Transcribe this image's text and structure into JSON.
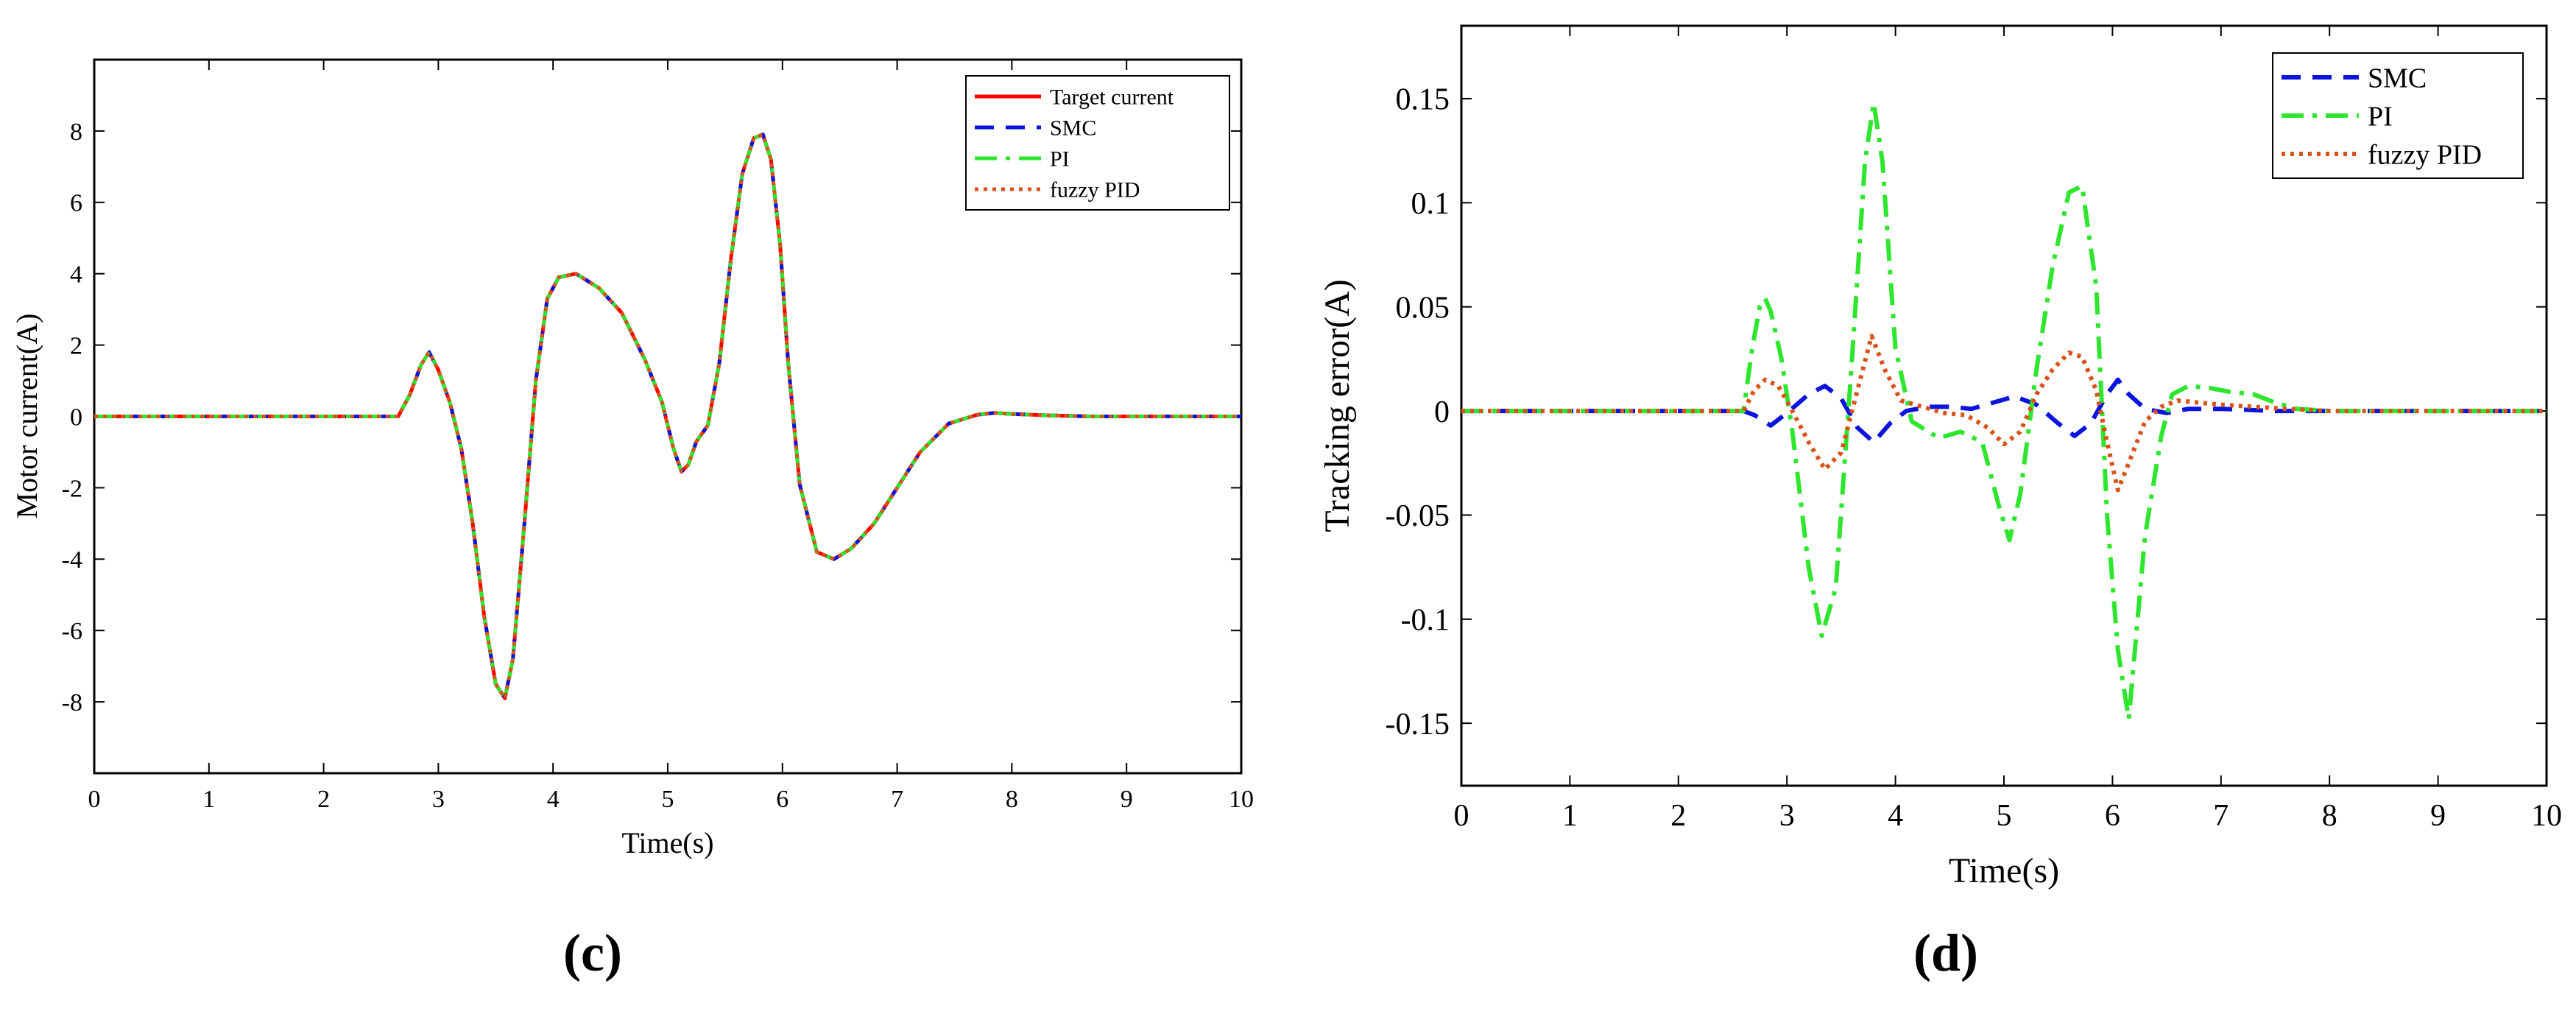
{
  "chart_data": [
    {
      "type": "line",
      "panel_label": "(c)",
      "xlabel": "Time(s)",
      "ylabel": "Motor current(A)",
      "xlim": [
        0,
        10
      ],
      "ylim": [
        -10,
        10
      ],
      "xticks": [
        0,
        1,
        2,
        3,
        4,
        5,
        6,
        7,
        8,
        9,
        10
      ],
      "xtick_labels": [
        "0",
        "1",
        "2",
        "3",
        "4",
        "5",
        "6",
        "7",
        "8",
        "9",
        "10"
      ],
      "yticks": [
        -8,
        -6,
        -4,
        -2,
        0,
        2,
        4,
        6,
        8
      ],
      "ytick_labels": [
        "-8",
        "-6",
        "-4",
        "-2",
        "0",
        "2",
        "4",
        "6",
        "8"
      ],
      "grid": false,
      "legend_position": "top-right",
      "series": [
        {
          "name": "Target current",
          "color": "#ff0000",
          "dash": "solid",
          "x": [
            0,
            2.65,
            2.75,
            2.85,
            2.92,
            3.0,
            3.1,
            3.2,
            3.3,
            3.4,
            3.5,
            3.58,
            3.65,
            3.75,
            3.85,
            3.95,
            4.05,
            4.2,
            4.4,
            4.6,
            4.8,
            4.95,
            5.05,
            5.12,
            5.18,
            5.25,
            5.35,
            5.45,
            5.55,
            5.65,
            5.75,
            5.83,
            5.9,
            5.98,
            6.05,
            6.15,
            6.3,
            6.45,
            6.6,
            6.8,
            7.0,
            7.2,
            7.45,
            7.7,
            7.85,
            8.0,
            8.3,
            8.7,
            9.2,
            10
          ],
          "y": [
            0,
            0,
            0.6,
            1.45,
            1.8,
            1.3,
            0.4,
            -0.9,
            -3.0,
            -5.6,
            -7.5,
            -7.9,
            -6.8,
            -3.0,
            1.0,
            3.3,
            3.9,
            4.0,
            3.6,
            2.9,
            1.6,
            0.4,
            -0.9,
            -1.55,
            -1.35,
            -0.7,
            -0.25,
            1.5,
            4.4,
            6.8,
            7.8,
            7.9,
            7.2,
            4.8,
            1.5,
            -1.9,
            -3.8,
            -4.0,
            -3.7,
            -3.0,
            -2.0,
            -1.0,
            -0.2,
            0.05,
            0.1,
            0.07,
            0.03,
            0,
            0,
            0
          ]
        },
        {
          "name": "SMC",
          "color": "#0a14dc",
          "dash": "dashed",
          "x": [
            0,
            2.65,
            2.75,
            2.85,
            2.92,
            3.0,
            3.1,
            3.2,
            3.3,
            3.4,
            3.5,
            3.58,
            3.65,
            3.75,
            3.85,
            3.95,
            4.05,
            4.2,
            4.4,
            4.6,
            4.8,
            4.95,
            5.05,
            5.12,
            5.18,
            5.25,
            5.35,
            5.45,
            5.55,
            5.65,
            5.75,
            5.83,
            5.9,
            5.98,
            6.05,
            6.15,
            6.3,
            6.45,
            6.6,
            6.8,
            7.0,
            7.2,
            7.45,
            7.7,
            7.85,
            8.0,
            8.3,
            8.7,
            9.2,
            10
          ],
          "y": [
            0,
            0,
            0.6,
            1.45,
            1.8,
            1.3,
            0.4,
            -0.9,
            -3.0,
            -5.6,
            -7.5,
            -7.9,
            -6.8,
            -3.0,
            1.0,
            3.3,
            3.9,
            4.0,
            3.6,
            2.9,
            1.6,
            0.4,
            -0.9,
            -1.55,
            -1.35,
            -0.7,
            -0.25,
            1.5,
            4.4,
            6.8,
            7.8,
            7.9,
            7.2,
            4.8,
            1.5,
            -1.9,
            -3.8,
            -4.0,
            -3.7,
            -3.0,
            -2.0,
            -1.0,
            -0.2,
            0.05,
            0.1,
            0.07,
            0.03,
            0,
            0,
            0
          ]
        },
        {
          "name": "PI",
          "color": "#2ee62e",
          "dash": "dashdot",
          "x": [
            0,
            2.65,
            2.75,
            2.85,
            2.92,
            3.0,
            3.1,
            3.2,
            3.3,
            3.4,
            3.5,
            3.58,
            3.65,
            3.75,
            3.85,
            3.95,
            4.05,
            4.2,
            4.4,
            4.6,
            4.8,
            4.95,
            5.05,
            5.12,
            5.18,
            5.25,
            5.35,
            5.45,
            5.55,
            5.65,
            5.75,
            5.83,
            5.9,
            5.98,
            6.05,
            6.15,
            6.3,
            6.45,
            6.6,
            6.8,
            7.0,
            7.2,
            7.45,
            7.7,
            7.85,
            8.0,
            8.3,
            8.7,
            9.2,
            10
          ],
          "y": [
            0,
            0,
            0.6,
            1.45,
            1.8,
            1.3,
            0.4,
            -0.9,
            -3.0,
            -5.6,
            -7.5,
            -7.9,
            -6.8,
            -3.0,
            1.0,
            3.3,
            3.9,
            4.0,
            3.6,
            2.9,
            1.6,
            0.4,
            -0.9,
            -1.55,
            -1.35,
            -0.7,
            -0.25,
            1.5,
            4.4,
            6.8,
            7.8,
            7.9,
            7.2,
            4.8,
            1.5,
            -1.9,
            -3.8,
            -4.0,
            -3.7,
            -3.0,
            -2.0,
            -1.0,
            -0.2,
            0.05,
            0.1,
            0.07,
            0.03,
            0,
            0,
            0
          ]
        },
        {
          "name": "fuzzy PID",
          "color": "#d95319",
          "dash": "dotted",
          "x": [
            0,
            2.65,
            2.75,
            2.85,
            2.92,
            3.0,
            3.1,
            3.2,
            3.3,
            3.4,
            3.5,
            3.58,
            3.65,
            3.75,
            3.85,
            3.95,
            4.05,
            4.2,
            4.4,
            4.6,
            4.8,
            4.95,
            5.05,
            5.12,
            5.18,
            5.25,
            5.35,
            5.45,
            5.55,
            5.65,
            5.75,
            5.83,
            5.9,
            5.98,
            6.05,
            6.15,
            6.3,
            6.45,
            6.6,
            6.8,
            7.0,
            7.2,
            7.45,
            7.7,
            7.85,
            8.0,
            8.3,
            8.7,
            9.2,
            10
          ],
          "y": [
            0,
            0,
            0.6,
            1.45,
            1.8,
            1.3,
            0.4,
            -0.9,
            -3.0,
            -5.6,
            -7.5,
            -7.9,
            -6.8,
            -3.0,
            1.0,
            3.3,
            3.9,
            4.0,
            3.6,
            2.9,
            1.6,
            0.4,
            -0.9,
            -1.55,
            -1.35,
            -0.7,
            -0.25,
            1.5,
            4.4,
            6.8,
            7.8,
            7.9,
            7.2,
            4.8,
            1.5,
            -1.9,
            -3.8,
            -4.0,
            -3.7,
            -3.0,
            -2.0,
            -1.0,
            -0.2,
            0.05,
            0.1,
            0.07,
            0.03,
            0,
            0,
            0
          ]
        }
      ]
    },
    {
      "type": "line",
      "panel_label": "(d)",
      "xlabel": "Time(s)",
      "ylabel": "Tracking error(A)",
      "xlim": [
        0,
        10
      ],
      "ylim": [
        -0.18,
        0.185
      ],
      "xticks": [
        0,
        1,
        2,
        3,
        4,
        5,
        6,
        7,
        8,
        9,
        10
      ],
      "xtick_labels": [
        "0",
        "1",
        "2",
        "3",
        "4",
        "5",
        "6",
        "7",
        "8",
        "9",
        "10"
      ],
      "yticks": [
        -0.15,
        -0.1,
        -0.05,
        0,
        0.05,
        0.1,
        0.15
      ],
      "ytick_labels": [
        "-0.15",
        "-0.1",
        "-0.05",
        "0",
        "0.05",
        "0.1",
        "0.15"
      ],
      "grid": false,
      "legend_position": "top-right",
      "series": [
        {
          "name": "SMC",
          "color": "#0a14dc",
          "dash": "dashed",
          "x": [
            0,
            2.6,
            2.7,
            2.85,
            3.0,
            3.2,
            3.35,
            3.5,
            3.65,
            3.8,
            3.95,
            4.1,
            4.3,
            4.5,
            4.7,
            4.9,
            5.1,
            5.3,
            5.5,
            5.65,
            5.8,
            5.95,
            6.05,
            6.15,
            6.3,
            6.5,
            6.7,
            7.0,
            7.5,
            8.0,
            10
          ],
          "y": [
            0,
            0,
            -0.002,
            -0.007,
            -0.001,
            0.008,
            0.012,
            0.006,
            -0.008,
            -0.015,
            -0.006,
            0.0,
            0.002,
            0.002,
            0.001,
            0.004,
            0.007,
            0.003,
            -0.006,
            -0.012,
            -0.006,
            0.008,
            0.015,
            0.008,
            0.001,
            -0.001,
            0.001,
            0.001,
            0,
            0,
            0
          ]
        },
        {
          "name": "PI",
          "color": "#2ee62e",
          "dash": "dashdot",
          "x": [
            0,
            2.6,
            2.68,
            2.75,
            2.8,
            2.85,
            2.95,
            3.05,
            3.2,
            3.32,
            3.45,
            3.6,
            3.72,
            3.8,
            3.88,
            4.0,
            4.15,
            4.4,
            4.6,
            4.8,
            4.95,
            5.05,
            5.15,
            5.3,
            5.45,
            5.6,
            5.72,
            5.85,
            5.95,
            6.05,
            6.15,
            6.3,
            6.45,
            6.55,
            6.7,
            6.9,
            7.1,
            7.3,
            7.5,
            7.7,
            8.0,
            10
          ],
          "y": [
            0,
            0,
            0.03,
            0.05,
            0.054,
            0.048,
            0.025,
            -0.01,
            -0.075,
            -0.108,
            -0.085,
            0.025,
            0.12,
            0.148,
            0.12,
            0.03,
            -0.005,
            -0.013,
            -0.01,
            -0.015,
            -0.045,
            -0.062,
            -0.04,
            0.02,
            0.07,
            0.105,
            0.108,
            0.06,
            -0.05,
            -0.115,
            -0.148,
            -0.06,
            -0.012,
            0.008,
            0.012,
            0.011,
            0.009,
            0.008,
            0.004,
            0.001,
            0,
            0
          ]
        },
        {
          "name": "fuzzy PID",
          "color": "#d95319",
          "dash": "dotted",
          "x": [
            0,
            2.6,
            2.7,
            2.8,
            2.92,
            3.05,
            3.2,
            3.35,
            3.5,
            3.65,
            3.78,
            3.9,
            4.05,
            4.25,
            4.45,
            4.65,
            4.85,
            5.0,
            5.15,
            5.3,
            5.45,
            5.6,
            5.72,
            5.85,
            5.95,
            6.05,
            6.15,
            6.3,
            6.45,
            6.6,
            6.8,
            7.0,
            7.3,
            7.6,
            8.0,
            10
          ],
          "y": [
            0,
            0,
            0.01,
            0.015,
            0.012,
            0.0,
            -0.015,
            -0.028,
            -0.02,
            0.01,
            0.036,
            0.02,
            0.005,
            0.002,
            -0.001,
            -0.002,
            -0.008,
            -0.016,
            -0.01,
            0.008,
            0.02,
            0.028,
            0.026,
            0.01,
            -0.015,
            -0.038,
            -0.025,
            -0.005,
            0.002,
            0.005,
            0.004,
            0.003,
            0.002,
            0.001,
            0,
            0
          ]
        }
      ]
    }
  ]
}
